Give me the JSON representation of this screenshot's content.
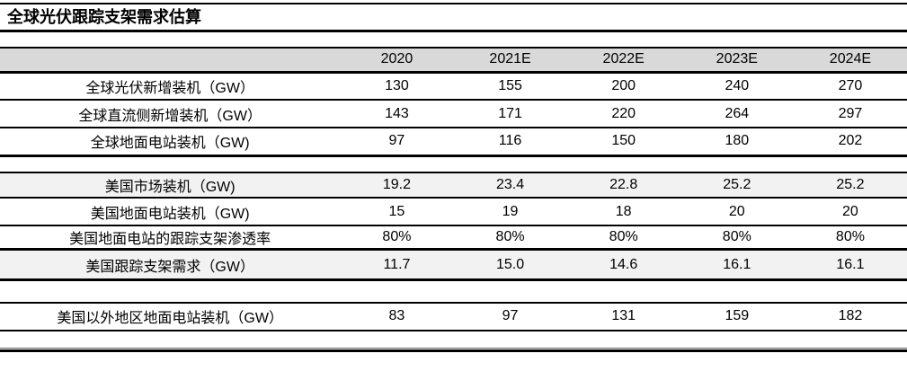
{
  "title": "全球光伏跟踪支架需求估算",
  "table": {
    "label_header": "",
    "columns": [
      "2020",
      "2021E",
      "2022E",
      "2023E",
      "2024E"
    ],
    "rows": [
      {
        "label": "全球光伏新增装机（GW）",
        "values": [
          "130",
          "155",
          "200",
          "240",
          "270"
        ]
      },
      {
        "label": "全球直流侧新增装机（GW）",
        "values": [
          "143",
          "171",
          "220",
          "264",
          "297"
        ]
      },
      {
        "label": "全球地面电站装机（GW)",
        "values": [
          "97",
          "116",
          "150",
          "180",
          "202"
        ]
      },
      {
        "label": "美国市场装机（GW)",
        "values": [
          "19.2",
          "23.4",
          "22.8",
          "25.2",
          "25.2"
        ]
      },
      {
        "label": "美国地面电站装机（GW)",
        "values": [
          "15",
          "19",
          "18",
          "20",
          "20"
        ]
      },
      {
        "label": "美国地面电站的跟踪支架渗透率",
        "values": [
          "80%",
          "80%",
          "80%",
          "80%",
          "80%"
        ]
      },
      {
        "label": "美国跟踪支架需求（GW）",
        "values": [
          "11.7",
          "15.0",
          "14.6",
          "16.1",
          "16.1"
        ]
      },
      {
        "label": "美国以外地区地面电站装机（GW）",
        "values": [
          "83",
          "97",
          "131",
          "159",
          "182"
        ]
      }
    ]
  },
  "colors": {
    "header_bg": "#d9d9d9",
    "highlight_bg": "#f2f2f2",
    "border": "#000000"
  }
}
